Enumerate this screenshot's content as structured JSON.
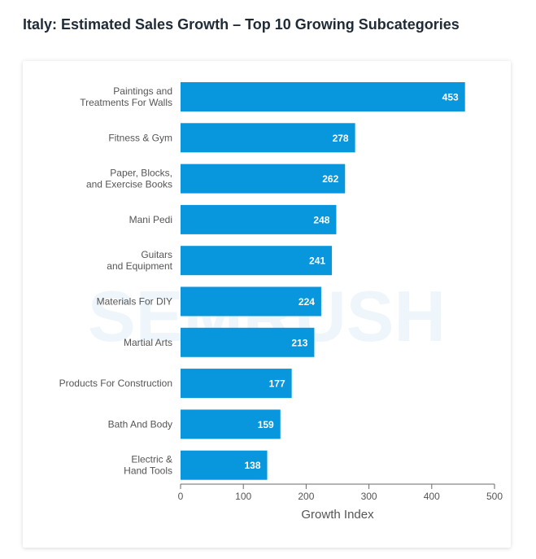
{
  "page": {
    "title": "Italy: Estimated Sales Growth – Top 10 Growing Subcategories"
  },
  "colors": {
    "bar": "#0896dd",
    "bar_label": "#ffffff",
    "axis": "#6a6a6a",
    "text": "#555555",
    "watermark": "#eef5fb"
  },
  "chart_data": {
    "type": "bar",
    "orientation": "horizontal",
    "title": "Italy: Estimated Sales Growth – Top 10 Growing Subcategories",
    "xlabel": "Growth Index",
    "ylabel": "",
    "xlim": [
      0,
      500
    ],
    "xticks": [
      0,
      100,
      200,
      300,
      400,
      500
    ],
    "grid": false,
    "watermark_text": "SEMRUSH",
    "categories": [
      [
        "Paintings and",
        "Treatments For Walls"
      ],
      [
        "Fitness & Gym"
      ],
      [
        "Paper, Blocks,",
        "and Exercise Books"
      ],
      [
        "Mani Pedi"
      ],
      [
        "Guitars",
        "and Equipment"
      ],
      [
        "Materials For DIY"
      ],
      [
        "Martial Arts"
      ],
      [
        "Products For Construction"
      ],
      [
        "Bath And Body"
      ],
      [
        "Electric &",
        "Hand Tools"
      ]
    ],
    "values": [
      453,
      278,
      262,
      248,
      241,
      224,
      213,
      177,
      159,
      138
    ]
  }
}
